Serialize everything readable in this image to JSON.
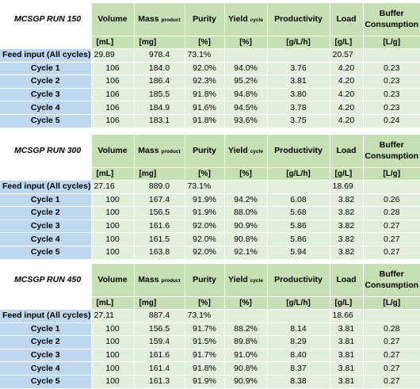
{
  "columns": {
    "volume": "Volume",
    "mass_main": "Mass",
    "mass_sub": "product",
    "purity": "Purity",
    "yield_main": "Yield",
    "yield_sub": "cycle",
    "productivity": "Productivity",
    "load": "Load",
    "buffer_line1": "Buffer",
    "buffer_line2": "Consumption"
  },
  "units": [
    "[mL]",
    "[mg]",
    "[%]",
    "[%]",
    "[g/L/h]",
    "[g/L]",
    "[L/g]"
  ],
  "runs": [
    {
      "title": "MCSGP RUN 150",
      "rows": [
        {
          "label": "Feed input (All cycles)",
          "volume": "29.89",
          "mass": "978.4",
          "purity": "73.1%",
          "yield": "",
          "productivity": "",
          "load": "20.57",
          "buffer": ""
        },
        {
          "label": "Cycle 1",
          "volume": "106",
          "mass": "184.0",
          "purity": "92.0%",
          "yield": "94.0%",
          "productivity": "3.76",
          "load": "4.20",
          "buffer": "0.23"
        },
        {
          "label": "Cycle 2",
          "volume": "106",
          "mass": "186.4",
          "purity": "92.3%",
          "yield": "95.2%",
          "productivity": "3.81",
          "load": "4.20",
          "buffer": "0.23"
        },
        {
          "label": "Cycle 3",
          "volume": "106",
          "mass": "185.5",
          "purity": "91.8%",
          "yield": "94.8%",
          "productivity": "3.80",
          "load": "4.20",
          "buffer": "0.23"
        },
        {
          "label": "Cycle 4",
          "volume": "106",
          "mass": "184.9",
          "purity": "91.6%",
          "yield": "94.5%",
          "productivity": "3.78",
          "load": "4.20",
          "buffer": "0.23"
        },
        {
          "label": "Cycle 5",
          "volume": "106",
          "mass": "183.1",
          "purity": "91.8%",
          "yield": "93.6%",
          "productivity": "3.75",
          "load": "4.20",
          "buffer": "0.24"
        }
      ]
    },
    {
      "title": "MCSGP RUN 300",
      "rows": [
        {
          "label": "Feed input (All cycles)",
          "volume": "27.16",
          "mass": "889.0",
          "purity": "73.1%",
          "yield": "",
          "productivity": "",
          "load": "18.69",
          "buffer": ""
        },
        {
          "label": "Cycle 1",
          "volume": "100",
          "mass": "167.4",
          "purity": "91.9%",
          "yield": "94.2%",
          "productivity": "6.08",
          "load": "3.82",
          "buffer": "0.26"
        },
        {
          "label": "Cycle 2",
          "volume": "100",
          "mass": "156.5",
          "purity": "91.9%",
          "yield": "88.0%",
          "productivity": "5.68",
          "load": "3.82",
          "buffer": "0.28"
        },
        {
          "label": "Cycle 3",
          "volume": "100",
          "mass": "161.6",
          "purity": "92.0%",
          "yield": "90.9%",
          "productivity": "5.86",
          "load": "3.82",
          "buffer": "0.27"
        },
        {
          "label": "Cycle 4",
          "volume": "100",
          "mass": "161.5",
          "purity": "92.0%",
          "yield": "90.8%",
          "productivity": "5.86",
          "load": "3.82",
          "buffer": "0.27"
        },
        {
          "label": "Cycle 5",
          "volume": "100",
          "mass": "163.8",
          "purity": "92.0%",
          "yield": "92.1%",
          "productivity": "5.94",
          "load": "3.82",
          "buffer": "0.27"
        }
      ]
    },
    {
      "title": "MCSGP RUN 450",
      "rows": [
        {
          "label": "Feed input (All cycles)",
          "volume": "27.11",
          "mass": "887.4",
          "purity": "73.1%",
          "yield": "",
          "productivity": "",
          "load": "18.66",
          "buffer": ""
        },
        {
          "label": "Cycle 1",
          "volume": "100",
          "mass": "156.5",
          "purity": "91.7%",
          "yield": "88.2%",
          "productivity": "8.14",
          "load": "3.81",
          "buffer": "0.28"
        },
        {
          "label": "Cycle 2",
          "volume": "100",
          "mass": "159.4",
          "purity": "91.5%",
          "yield": "89.8%",
          "productivity": "8.29",
          "load": "3.81",
          "buffer": "0.27"
        },
        {
          "label": "Cycle 3",
          "volume": "100",
          "mass": "161.6",
          "purity": "91.7%",
          "yield": "91.0%",
          "productivity": "8.40",
          "load": "3.81",
          "buffer": "0.27"
        },
        {
          "label": "Cycle 4",
          "volume": "100",
          "mass": "161.4",
          "purity": "91.8%",
          "yield": "90.8%",
          "productivity": "8.37",
          "load": "3.81",
          "buffer": "0.27"
        },
        {
          "label": "Cycle 5",
          "volume": "100",
          "mass": "161.3",
          "purity": "91.9%",
          "yield": "90.9%",
          "productivity": "8.38",
          "load": "3.81",
          "buffer": "0.27"
        }
      ]
    }
  ]
}
